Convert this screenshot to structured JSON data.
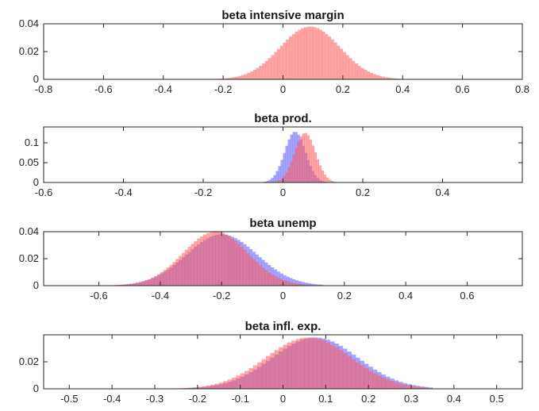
{
  "chart_data": [
    {
      "type": "histogram",
      "title": "beta intensive margin",
      "xlim": [
        -0.8,
        0.8
      ],
      "ylim": [
        0,
        0.04
      ],
      "xticks": [
        "-0.8",
        "-0.6",
        "-0.4",
        "-0.2",
        "0",
        "0.2",
        "0.4",
        "0.6",
        "0.8"
      ],
      "yticks": [
        "0",
        "0.02",
        "0.04"
      ],
      "series": [
        {
          "color": "#ff5a5a",
          "dist": {
            "mean": 0.09,
            "sd": 0.1,
            "peak": 0.038,
            "lo": -0.27,
            "hi": 0.4,
            "bin": 0.01
          }
        }
      ]
    },
    {
      "type": "histogram",
      "title": "beta prod.",
      "xlim": [
        -0.6,
        0.6
      ],
      "ylim": [
        0,
        0.14
      ],
      "xticks": [
        "-0.6",
        "-0.4",
        "-0.2",
        "0",
        "0.2",
        "0.4"
      ],
      "yticks": [
        "0",
        "0.05",
        "0.1"
      ],
      "series": [
        {
          "color": "#5a5aff",
          "dist": {
            "mean": 0.03,
            "sd": 0.026,
            "peak": 0.128,
            "lo": -0.06,
            "hi": 0.12,
            "bin": 0.006
          }
        },
        {
          "color": "#ff5a5a",
          "dist": {
            "mean": 0.055,
            "sd": 0.026,
            "peak": 0.125,
            "lo": -0.03,
            "hi": 0.145,
            "bin": 0.006
          }
        }
      ]
    },
    {
      "type": "histogram",
      "title": "beta unemp",
      "xlim": [
        -0.78,
        0.78
      ],
      "ylim": [
        0,
        0.04
      ],
      "xticks": [
        "-0.6",
        "-0.4",
        "-0.2",
        "0",
        "0.2",
        "0.4",
        "0.6"
      ],
      "yticks": [
        "0",
        "0.02",
        "0.04"
      ],
      "series": [
        {
          "color": "#5a5aff",
          "dist": {
            "mean": -0.2,
            "sd": 0.115,
            "peak": 0.038,
            "lo": -0.56,
            "hi": 0.13,
            "bin": 0.01
          }
        },
        {
          "color": "#ff5a5a",
          "dist": {
            "mean": -0.22,
            "sd": 0.105,
            "peak": 0.04,
            "lo": -0.56,
            "hi": 0.1,
            "bin": 0.01
          }
        }
      ]
    },
    {
      "type": "histogram",
      "title": "beta infl. exp.",
      "xlim": [
        -0.56,
        0.56
      ],
      "ylim": [
        0,
        0.04
      ],
      "xticks": [
        "-0.5",
        "-0.4",
        "-0.3",
        "-0.2",
        "-0.1",
        "0",
        "0.1",
        "0.2",
        "0.3",
        "0.4",
        "0.5"
      ],
      "yticks": [
        "0",
        "0.02"
      ],
      "series": [
        {
          "color": "#5a5aff",
          "dist": {
            "mean": 0.075,
            "sd": 0.1,
            "peak": 0.038,
            "lo": -0.27,
            "hi": 0.35,
            "bin": 0.01
          }
        },
        {
          "color": "#ff5a5a",
          "dist": {
            "mean": 0.06,
            "sd": 0.1,
            "peak": 0.038,
            "lo": -0.3,
            "hi": 0.34,
            "bin": 0.01
          }
        }
      ]
    }
  ]
}
